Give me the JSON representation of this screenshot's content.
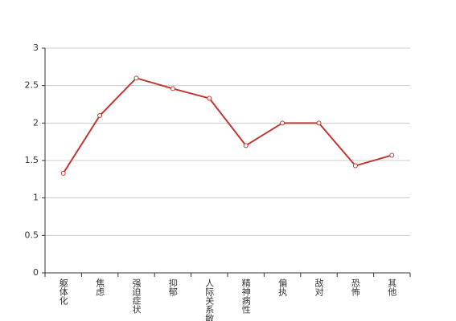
{
  "chart_data": {
    "type": "line",
    "categories": [
      "躯体化",
      "焦虑",
      "强迫症状",
      "抑郁",
      "人际关系敏感",
      "精神病性",
      "偏执",
      "敌对",
      "恐怖",
      "其他"
    ],
    "series": [
      {
        "name": null,
        "color": "#c23531",
        "values": [
          1.33,
          2.1,
          2.6,
          2.46,
          2.33,
          1.7,
          2.0,
          2.0,
          1.43,
          1.57
        ]
      }
    ],
    "ylim": [
      0,
      3
    ],
    "yticks": [
      0,
      0.5,
      1,
      1.5,
      2,
      2.5,
      3
    ],
    "grid": true
  }
}
